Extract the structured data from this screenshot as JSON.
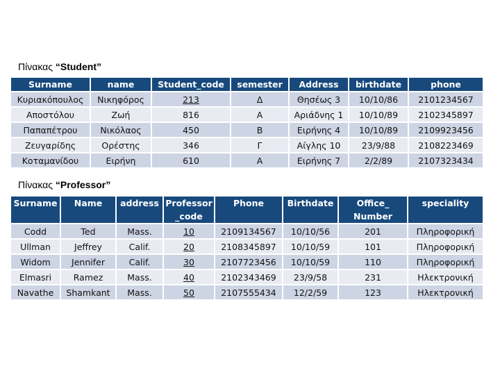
{
  "student": {
    "title_prefix": "Πίνακας",
    "title_name": "“Student”",
    "headers": [
      "Surname",
      "name",
      "Student_code",
      "semester",
      "Address",
      "birthdate",
      "phone"
    ],
    "rows": [
      [
        "Κυριακόπουλος",
        "Νικηφόρος",
        "213",
        "Δ",
        "Θησέως 3",
        "10/10/86",
        "2101234567"
      ],
      [
        "Αποστόλου",
        "Ζωή",
        "816",
        "Α",
        "Αριάδνης 1",
        "10/10/89",
        "2102345897"
      ],
      [
        "Παπαπέτρου",
        "Νικόλαος",
        "450",
        "Β",
        "Ειρήνης 4",
        "10/10/89",
        "2109923456"
      ],
      [
        "Ζευγαρίδης",
        "Ορέστης",
        "346",
        "Γ",
        "Αίγλης 10",
        "23/9/88",
        "2108223469"
      ],
      [
        "Κοταμανίδου",
        "Ειρήνη",
        "610",
        "Α",
        "Ειρήνης 7",
        "2/2/89",
        "2107323434"
      ]
    ]
  },
  "professor": {
    "title_prefix": "Πίνακας",
    "title_name": "“Professor”",
    "headers": [
      "Surname",
      "Name",
      "address",
      "Professor _code",
      "Phone",
      "Birthdate",
      "Office_ Number",
      "speciality"
    ],
    "rows": [
      [
        "Codd",
        "Ted",
        "Mass.",
        "10",
        "2109134567",
        "10/10/56",
        "201",
        "Πληροφορική"
      ],
      [
        "Ullman",
        "Jeffrey",
        "Calif.",
        "20",
        "2108345897",
        "10/10/59",
        "101",
        "Πληροφορική"
      ],
      [
        "Widom",
        "Jennifer",
        "Calif.",
        "30",
        "2107723456",
        "10/10/59",
        "110",
        "Πληροφορική"
      ],
      [
        "Elmasri",
        "Ramez",
        "Mass.",
        "40",
        "2102343469",
        "23/9/58",
        "231",
        "Ηλεκτρονική"
      ],
      [
        "Navathe",
        "Shamkant",
        "Mass.",
        "50",
        "2107555434",
        "12/2/59",
        "123",
        "Ηλεκτρονική"
      ]
    ]
  },
  "colors": {
    "header_bg": "#17497d",
    "row_odd": "#cdd4e3",
    "row_even": "#e8ebf2"
  }
}
